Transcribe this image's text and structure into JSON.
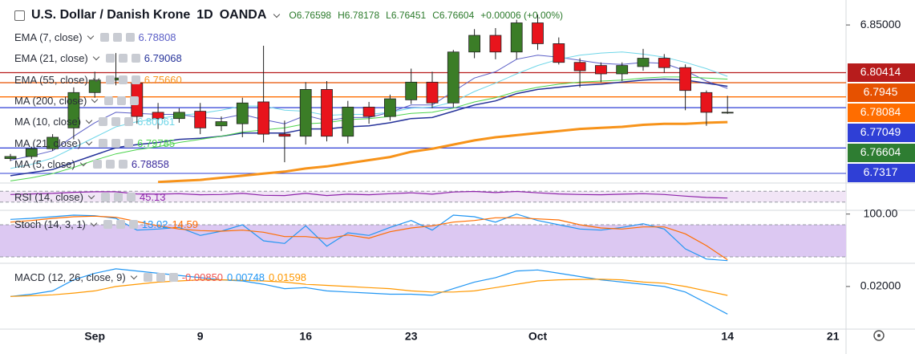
{
  "chart_data": [
    {
      "type": "candlestick",
      "title": "U.S. Dollar / Danish Krone",
      "interval": "1D",
      "source": "OANDA",
      "header": [
        "O6.76598",
        "H6.78178",
        "L6.76451",
        "C6.76604",
        "+0.00006 (+0.00%)"
      ],
      "up_color": "#3b7d27",
      "down_color": "#e8141c",
      "open": [
        6.7215,
        6.7235,
        6.731,
        6.751,
        6.785,
        6.797,
        6.794,
        6.766,
        6.76,
        6.767,
        6.753,
        6.755,
        6.776,
        6.745,
        6.743,
        6.788,
        6.743,
        6.771,
        6.762,
        6.778,
        6.795,
        6.775,
        6.824,
        6.84,
        6.824,
        6.852,
        6.832,
        6.814,
        6.811,
        6.803,
        6.81,
        6.818,
        6.809,
        6.785,
        6.76598
      ],
      "high": [
        6.726,
        6.733,
        6.745,
        6.79,
        6.805,
        6.823,
        6.797,
        6.775,
        6.77,
        6.775,
        6.762,
        6.78,
        6.83,
        6.758,
        6.795,
        6.796,
        6.777,
        6.776,
        6.783,
        6.808,
        6.805,
        6.826,
        6.846,
        6.847,
        6.855,
        6.86,
        6.838,
        6.818,
        6.814,
        6.814,
        6.827,
        6.822,
        6.812,
        6.787,
        6.78178
      ],
      "low": [
        6.719,
        6.721,
        6.729,
        6.74,
        6.78,
        6.792,
        6.755,
        6.75,
        6.756,
        6.745,
        6.748,
        6.742,
        6.737,
        6.718,
        6.735,
        6.738,
        6.736,
        6.755,
        6.758,
        6.774,
        6.77,
        6.771,
        6.818,
        6.817,
        6.817,
        6.826,
        6.812,
        6.79,
        6.795,
        6.796,
        6.806,
        6.804,
        6.768,
        6.753,
        6.76451
      ],
      "close": [
        6.7235,
        6.731,
        6.742,
        6.785,
        6.797,
        6.799,
        6.762,
        6.76,
        6.766,
        6.751,
        6.757,
        6.775,
        6.745,
        6.743,
        6.788,
        6.743,
        6.771,
        6.762,
        6.779,
        6.795,
        6.775,
        6.824,
        6.84,
        6.824,
        6.852,
        6.832,
        6.814,
        6.806,
        6.803,
        6.811,
        6.818,
        6.809,
        6.787,
        6.766,
        6.76604
      ],
      "xticks": [
        {
          "value": 4,
          "label": "Sep"
        },
        {
          "value": 9,
          "label": "9"
        },
        {
          "value": 14,
          "label": "16"
        },
        {
          "value": 19,
          "label": "23"
        },
        {
          "value": 25,
          "label": "Oct"
        },
        {
          "value": 34,
          "label": "14"
        },
        {
          "value": 39,
          "label": "21"
        }
      ],
      "ylim": [
        6.698,
        6.874
      ],
      "yticks": [
        {
          "value": 6.85,
          "label": "6.85000"
        }
      ],
      "indicators": [
        {
          "name": "EMA (7, close)",
          "color": "#5b5fc7",
          "value": 6.78808,
          "width": 1,
          "values": [
            6.72,
            6.724,
            6.729,
            6.743,
            6.756,
            6.766,
            6.765,
            6.764,
            6.764,
            6.761,
            6.76,
            6.764,
            6.759,
            6.755,
            6.763,
            6.758,
            6.761,
            6.761,
            6.766,
            6.773,
            6.773,
            6.786,
            6.799,
            6.805,
            6.817,
            6.821,
            6.819,
            6.816,
            6.813,
            6.812,
            6.814,
            6.813,
            6.806,
            6.796,
            6.789
          ]
        },
        {
          "name": "EMA (21, close)",
          "color": "#26339a",
          "value": 6.79068,
          "width": 1.5,
          "values": [
            6.705,
            6.708,
            6.711,
            6.718,
            6.725,
            6.732,
            6.735,
            6.737,
            6.74,
            6.741,
            6.743,
            6.746,
            6.746,
            6.746,
            6.75,
            6.75,
            6.752,
            6.753,
            6.756,
            6.76,
            6.761,
            6.767,
            6.773,
            6.777,
            6.784,
            6.788,
            6.79,
            6.792,
            6.793,
            6.795,
            6.797,
            6.798,
            6.797,
            6.794,
            6.791
          ]
        },
        {
          "name": "EMA (55, close)",
          "color": "#f7931a",
          "value": {
            "value": 6.7566,
            "label": "6.75660"
          },
          "width": 3,
          "values": [
            null,
            null,
            null,
            null,
            null,
            null,
            null,
            6.699,
            6.7,
            6.701,
            6.703,
            6.705,
            6.707,
            6.709,
            6.712,
            6.714,
            6.717,
            6.72,
            6.723,
            6.728,
            6.731,
            6.735,
            6.739,
            6.742,
            6.744,
            6.746,
            6.748,
            6.75,
            6.751,
            6.752,
            6.754,
            6.755,
            6.755,
            6.756,
            6.7566
          ]
        },
        {
          "name": "MA (200, close)",
          "color": "#e8141c"
        },
        {
          "name": "MA (10, close)",
          "color": "#6fd6e8",
          "value": 6.80061,
          "width": 1,
          "values": [
            6.712,
            6.716,
            6.722,
            6.732,
            6.742,
            6.752,
            6.757,
            6.76,
            6.763,
            6.765,
            6.768,
            6.772,
            6.772,
            6.768,
            6.767,
            6.763,
            6.764,
            6.764,
            6.766,
            6.77,
            6.771,
            6.776,
            6.786,
            6.794,
            6.803,
            6.811,
            6.817,
            6.821,
            6.823,
            6.824,
            6.822,
            6.819,
            6.814,
            6.808,
            6.8006
          ]
        },
        {
          "name": "MA (21, close)",
          "color": "#4cd34c",
          "value": 6.79785,
          "width": 1,
          "values": [
            6.7,
            6.703,
            6.707,
            6.713,
            6.72,
            6.726,
            6.73,
            6.733,
            6.737,
            6.74,
            6.743,
            6.747,
            6.749,
            6.751,
            6.755,
            6.756,
            6.759,
            6.76,
            6.762,
            6.765,
            6.766,
            6.77,
            6.776,
            6.78,
            6.786,
            6.79,
            6.793,
            6.795,
            6.796,
            6.797,
            6.799,
            6.8,
            6.8,
            6.799,
            6.7979
          ]
        },
        {
          "name": "MA (5, close)",
          "color": "#3a2a9c",
          "value": 6.78858
        }
      ],
      "price_lines": [
        {
          "value": 6.80414,
          "color": "#b71c1c",
          "line": true
        },
        {
          "value": 6.7945,
          "color": "#e65100",
          "line": true
        },
        {
          "value": 6.78084,
          "color": "#ff6d00",
          "line": true
        },
        {
          "value": 6.77049,
          "color": "#2f3fd6",
          "line": true
        },
        {
          "value": 6.76604,
          "color": "#2e7d32",
          "line": false
        },
        {
          "value": 6.7317,
          "color": "#2f3fd6",
          "line": true
        }
      ]
    },
    {
      "type": "line",
      "title": "RSI (14, close)",
      "ylim": [
        0,
        100
      ],
      "bands": [
        30,
        70
      ],
      "band_color": "#f1e5f6",
      "series": [
        {
          "color": "#8e24aa",
          "values": [
            58,
            60,
            62,
            66,
            68,
            68,
            60,
            59,
            61,
            57,
            58,
            62,
            55,
            54,
            62,
            54,
            59,
            57,
            61,
            64,
            59,
            67,
            69,
            65,
            69,
            64,
            60,
            58,
            57,
            59,
            61,
            58,
            52,
            47,
            45.13
          ]
        }
      ]
    },
    {
      "type": "line",
      "title": "Stoch (14, 3, 1)",
      "ylim": [
        8,
        107
      ],
      "bands": [
        20,
        80
      ],
      "band_color": "#dcc8f2",
      "yticks": [
        {
          "value": 100,
          "label": "100.00"
        }
      ],
      "series": [
        {
          "color": "#2196f3",
          "values": [
            90,
            92,
            95,
            98,
            97,
            92,
            70,
            72,
            75,
            60,
            68,
            80,
            50,
            45,
            78,
            40,
            65,
            60,
            75,
            88,
            70,
            98,
            95,
            85,
            100,
            88,
            80,
            72,
            70,
            75,
            82,
            72,
            35,
            16,
            13.02
          ]
        },
        {
          "color": "#ff6d00",
          "values": [
            85,
            88,
            92,
            95,
            96,
            94,
            86,
            78,
            72,
            69,
            68,
            70,
            66,
            58,
            58,
            54,
            61,
            55,
            67,
            74,
            78,
            85,
            88,
            93,
            93,
            91,
            89,
            80,
            74,
            72,
            76,
            76,
            63,
            41,
            14.59
          ]
        }
      ]
    },
    {
      "type": "line",
      "title": "MACD (12, 26, close, 9)",
      "ylim": [
        0.0007,
        0.0305
      ],
      "yticks": [
        {
          "value": 0.02,
          "label": "0.02000"
        }
      ],
      "histogram_value": {
        "value": -0.0085,
        "label": "-0.00850"
      },
      "histogram_color": "#ef5350",
      "series": [
        {
          "color": "#2196f3",
          "values": [
            0.0155,
            0.0165,
            0.018,
            0.023,
            0.026,
            0.028,
            0.027,
            0.026,
            0.025,
            0.024,
            0.023,
            0.0225,
            0.021,
            0.019,
            0.0195,
            0.018,
            0.0175,
            0.017,
            0.0165,
            0.0165,
            0.016,
            0.019,
            0.022,
            0.024,
            0.027,
            0.0275,
            0.026,
            0.0245,
            0.023,
            0.022,
            0.021,
            0.02,
            0.0175,
            0.0125,
            0.00748
          ]
        },
        {
          "color": "#ff9800",
          "values": [
            0.0155,
            0.0158,
            0.0162,
            0.017,
            0.018,
            0.02,
            0.021,
            0.022,
            0.0225,
            0.023,
            0.023,
            0.0228,
            0.0225,
            0.022,
            0.021,
            0.0205,
            0.02,
            0.0195,
            0.019,
            0.018,
            0.0175,
            0.0175,
            0.018,
            0.0195,
            0.021,
            0.0225,
            0.023,
            0.0232,
            0.0233,
            0.023,
            0.022,
            0.0215,
            0.02,
            0.018,
            0.01598
          ]
        }
      ]
    }
  ]
}
